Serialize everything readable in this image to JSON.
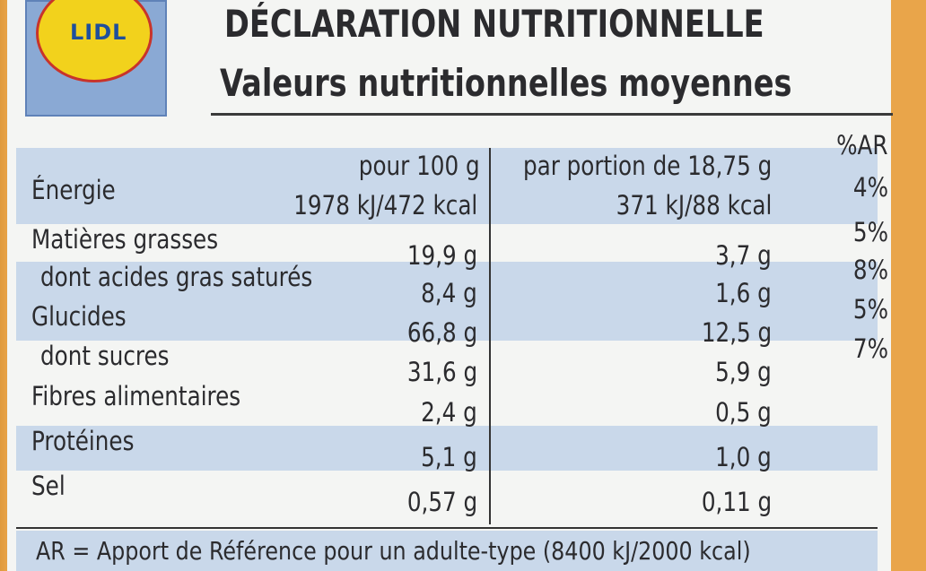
{
  "logo": "LIDL",
  "header": {
    "title": "DÉCLARATION NUTRITIONNELLE",
    "subtitle": "Valeurs nutritionnelles moyennes"
  },
  "table": {
    "columns": [
      "pour 100 g",
      "par portion de 18,75 g",
      "%AR"
    ],
    "rows": [
      {
        "label": "Énergie",
        "per100": "1978 kJ/472 kcal",
        "portion": "371 kJ/88 kcal",
        "ar": "4%"
      },
      {
        "label": "Matières grasses",
        "per100": "19,9 g",
        "portion": "3,7 g",
        "ar": "5%"
      },
      {
        "label": "dont acides gras saturés",
        "per100": "8,4 g",
        "portion": "1,6 g",
        "ar": "8%"
      },
      {
        "label": "Glucides",
        "per100": "66,8 g",
        "portion": "12,5 g",
        "ar": "5%"
      },
      {
        "label": "dont sucres",
        "per100": "31,6 g",
        "portion": "5,9 g",
        "ar": "7%"
      },
      {
        "label": "Fibres alimentaires",
        "per100": "2,4 g",
        "portion": "0,5 g"
      },
      {
        "label": "Protéines",
        "per100": "5,1 g",
        "portion": "1,0 g"
      },
      {
        "label": "Sel",
        "per100": "0,57 g",
        "portion": "0,11 g"
      }
    ]
  },
  "footer": "AR = Apport de Référence pour un adulte-type (8400 kJ/2000 kcal)"
}
